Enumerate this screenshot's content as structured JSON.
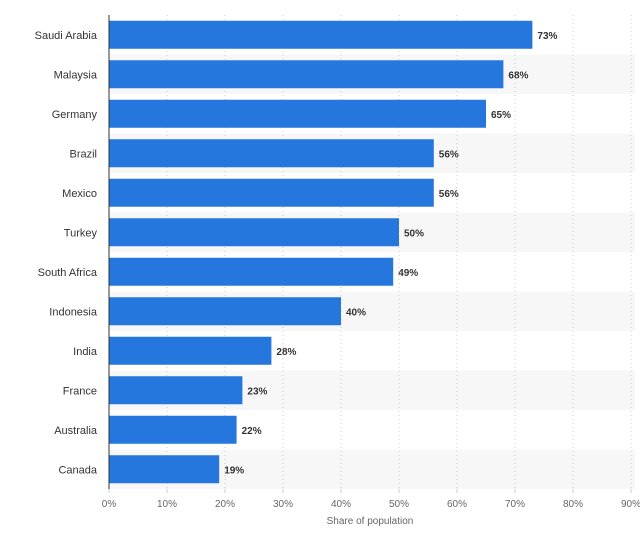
{
  "chart_data": {
    "type": "bar",
    "orientation": "horizontal",
    "categories": [
      "Saudi Arabia",
      "Malaysia",
      "Germany",
      "Brazil",
      "Mexico",
      "Turkey",
      "South Africa",
      "Indonesia",
      "India",
      "France",
      "Australia",
      "Canada"
    ],
    "values": [
      73,
      68,
      65,
      56,
      56,
      50,
      49,
      40,
      28,
      23,
      22,
      19
    ],
    "value_labels": [
      "73%",
      "68%",
      "65%",
      "56%",
      "56%",
      "50%",
      "49%",
      "40%",
      "28%",
      "23%",
      "22%",
      "19%"
    ],
    "title": "",
    "xlabel": "Share of population",
    "ylabel": "",
    "xlim": [
      0,
      90
    ],
    "ticks": [
      0,
      10,
      20,
      30,
      40,
      50,
      60,
      70,
      80,
      90
    ],
    "tick_labels": [
      "0%",
      "10%",
      "20%",
      "30%",
      "40%",
      "50%",
      "60%",
      "70%",
      "80%",
      "90%"
    ],
    "grid": true,
    "legend": "none"
  },
  "colors": {
    "bar": "#2677dd",
    "band": "#f7f7f7",
    "grid": "#cccccc",
    "axis": "#333333"
  }
}
